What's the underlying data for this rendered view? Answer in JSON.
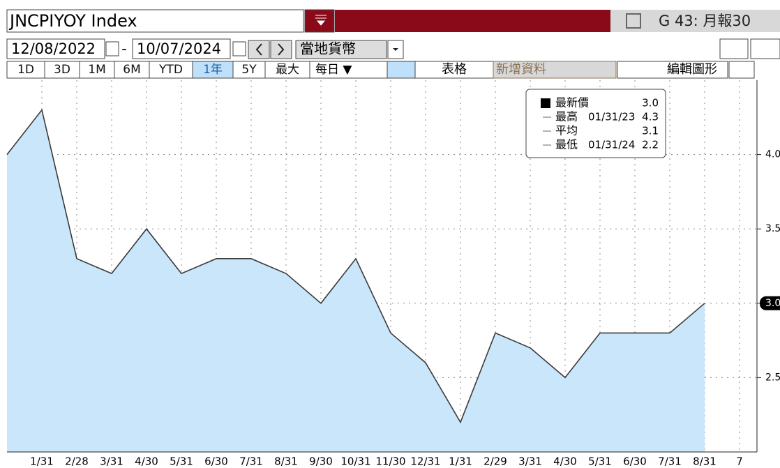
{
  "header": {
    "ticker": "JNCPIYOY Index",
    "function": "G 43: 月報30"
  },
  "toolbar": {
    "start_date": "12/08/2022",
    "separator": "-",
    "end_date": "10/07/2024",
    "currency": "當地貨幣",
    "periods": [
      "1D",
      "3D",
      "1M",
      "6M",
      "YTD",
      "1年",
      "5Y",
      "最大"
    ],
    "frequency": "每日 ▼",
    "table": "表格",
    "add_data": "新增資料",
    "edit": "編輯圖形"
  },
  "chart_data": {
    "type": "area",
    "categories": [
      null,
      "1/31",
      "2/28",
      "3/31",
      "4/30",
      "5/31",
      "6/30",
      "7/31",
      "8/31",
      "9/30",
      "10/31",
      "11/30",
      "12/31",
      "1/31",
      "2/29",
      "3/31",
      "4/30",
      "5/31",
      "6/30",
      "7/31",
      "8/31",
      "7"
    ],
    "values": [
      4.0,
      4.3,
      3.3,
      3.2,
      3.5,
      3.2,
      3.3,
      3.3,
      3.2,
      3.0,
      3.3,
      2.8,
      2.6,
      2.2,
      2.8,
      2.7,
      2.5,
      2.8,
      2.8,
      2.8,
      3.0,
      null
    ],
    "color": "#c9e6fb",
    "line_color": "#3a3a3a",
    "ylim": [
      2.0,
      4.5
    ],
    "yticks": [
      {
        "value": 4,
        "label": "4.0"
      },
      3.5,
      {
        "value": 3,
        "label": "3.0"
      },
      2.5
    ],
    "grid": true,
    "legend": [
      {
        "name": "最新價",
        "value": "3.0"
      },
      {
        "name": "最高",
        "date": "01/31/23",
        "value": "4.3"
      },
      {
        "name": "平均",
        "value": "3.1"
      },
      {
        "name": "最低",
        "date": "01/31/24",
        "value": "2.2"
      }
    ]
  }
}
